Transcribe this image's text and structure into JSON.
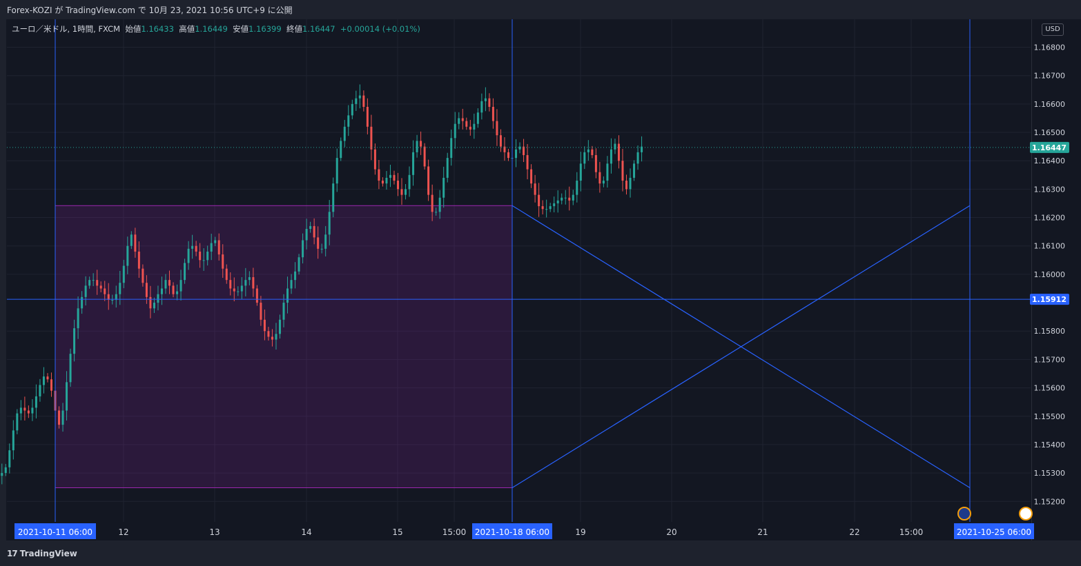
{
  "header": {
    "title": "Forex-KOZI が TradingView.com で 10月 23, 2021 10:56 UTC+9 に公開"
  },
  "legend": {
    "symbol": "ユーロ／米ドル, 1時間, FXCM",
    "open_label": "始値",
    "open": "1.16433",
    "high_label": "高値",
    "high": "1.16449",
    "low_label": "安値",
    "low": "1.16399",
    "close_label": "終値",
    "close": "1.16447",
    "change": "+0.00014 (+0.01%)"
  },
  "currency_button": "USD",
  "footer": {
    "brand": "TradingView",
    "logo_mark": "17"
  },
  "colors": {
    "up": "#26a69a",
    "down": "#ef5350",
    "line": "#2962ff",
    "box_border": "#9c27b0",
    "box_fill": "rgba(156,39,176,0.18)",
    "background": "#131722"
  },
  "chart_data": {
    "type": "candlestick",
    "interval": "1h",
    "y_ticks": [
      "1.16800",
      "1.16700",
      "1.16600",
      "1.16500",
      "1.16400",
      "1.16300",
      "1.16200",
      "1.16100",
      "1.16000",
      "1.15800",
      "1.15700",
      "1.15600",
      "1.15500",
      "1.15400",
      "1.15300",
      "1.15200"
    ],
    "ylim": [
      1.1512,
      1.1683
    ],
    "x_ticks": [
      "12",
      "13",
      "14",
      "15",
      "15:00",
      "19",
      "20",
      "21",
      "22",
      "15:00"
    ],
    "x_highlight_labels": [
      "2021-10-11   06:00",
      "2021-10-18   06:00",
      "2021-10-25   06:00"
    ],
    "price_labels": {
      "last": "1.16447",
      "level": "1.15912"
    },
    "drawings": {
      "rectangle": {
        "from": "2021-10-11 06:00",
        "to": "2021-10-18 06:00",
        "top": 1.16242,
        "bottom": 1.15248
      },
      "horizontal_line": 1.15912,
      "vertical_lines": [
        "2021-10-11 06:00",
        "2021-10-18 06:00",
        "2021-10-25 06:00"
      ],
      "projection_lines": [
        {
          "from": [
            "2021-10-18 06:00",
            1.16242
          ],
          "to": [
            "2021-10-25 06:00",
            1.15248
          ]
        },
        {
          "from": [
            "2021-10-18 06:00",
            1.15248
          ],
          "to": [
            "2021-10-25 06:00",
            1.16242
          ]
        }
      ]
    },
    "close_series": [
      1.1564,
      1.1567,
      1.1569,
      1.1573,
      1.1571,
      1.1568,
      1.1574,
      1.1577,
      1.1575,
      1.1572,
      1.1569,
      1.1571,
      1.1574,
      1.1578,
      1.158,
      1.1576,
      1.1572,
      1.157,
      1.1567,
      1.1563,
      1.156,
      1.1564,
      1.157,
      1.1575,
      1.1579,
      1.1583,
      1.1578,
      1.1573,
      1.157,
      1.1566,
      1.1562,
      1.1557,
      1.1553,
      1.155,
      1.1549,
      1.1549,
      1.1551,
      1.1555,
      1.1558,
      1.1561,
      1.1565,
      1.1568,
      1.1566,
      1.1562,
      1.1558,
      1.1555,
      1.1549,
      1.1543,
      1.1537,
      1.1531,
      1.1527,
      1.1526,
      1.1527,
      1.1529,
      1.153,
      1.1532,
      1.1538,
      1.1545,
      1.1551,
      1.1553,
      1.1552,
      1.1551,
      1.1553,
      1.1557,
      1.1561,
      1.1564,
      1.1563,
      1.1559,
      1.1552,
      1.1547,
      1.1552,
      1.1562,
      1.1572,
      1.1581,
      1.1588,
      1.1592,
      1.1596,
      1.1598,
      1.1598,
      1.1596,
      1.1595,
      1.1593,
      1.1591,
      1.1591,
      1.1593,
      1.1597,
      1.1603,
      1.161,
      1.1614,
      1.1608,
      1.1602,
      1.1597,
      1.1592,
      1.1588,
      1.159,
      1.1593,
      1.1595,
      1.1598,
      1.1596,
      1.1593,
      1.1594,
      1.1598,
      1.1604,
      1.1609,
      1.161,
      1.1608,
      1.1605,
      1.1605,
      1.1608,
      1.1611,
      1.1612,
      1.1607,
      1.1602,
      1.1598,
      1.1595,
      1.1594,
      1.1594,
      1.1596,
      1.1598,
      1.1599,
      1.1595,
      1.159,
      1.1584,
      1.158,
      1.1578,
      1.1577,
      1.1579,
      1.1584,
      1.159,
      1.1595,
      1.1598,
      1.1601,
      1.1606,
      1.1612,
      1.1616,
      1.1617,
      1.1613,
      1.1609,
      1.1609,
      1.1614,
      1.1622,
      1.1632,
      1.1641,
      1.1647,
      1.1652,
      1.1656,
      1.166,
      1.1662,
      1.1663,
      1.1659,
      1.1652,
      1.1644,
      1.1637,
      1.1633,
      1.1632,
      1.1634,
      1.1635,
      1.1633,
      1.163,
      1.1628,
      1.163,
      1.1635,
      1.1643,
      1.1647,
      1.1645,
      1.1638,
      1.1628,
      1.1622,
      1.1622,
      1.1627,
      1.1634,
      1.1641,
      1.1648,
      1.1653,
      1.1655,
      1.1654,
      1.1652,
      1.1651,
      1.1653,
      1.1657,
      1.1661,
      1.1662,
      1.1659,
      1.1654,
      1.1649,
      1.1645,
      1.1643,
      1.1641,
      1.1641,
      1.1644,
      1.1645,
      1.1642,
      1.1637,
      1.1632,
      1.1628,
      1.1624,
      1.1623,
      1.1623,
      1.1624,
      1.1625,
      1.1626,
      1.1627,
      1.1627,
      1.1626,
      1.1628,
      1.1633,
      1.1639,
      1.1643,
      1.1644,
      1.1642,
      1.1636,
      1.1632,
      1.1633,
      1.1639,
      1.1644,
      1.1646,
      1.164,
      1.1633,
      1.163,
      1.1634,
      1.1639,
      1.1643,
      1.1645
    ]
  }
}
